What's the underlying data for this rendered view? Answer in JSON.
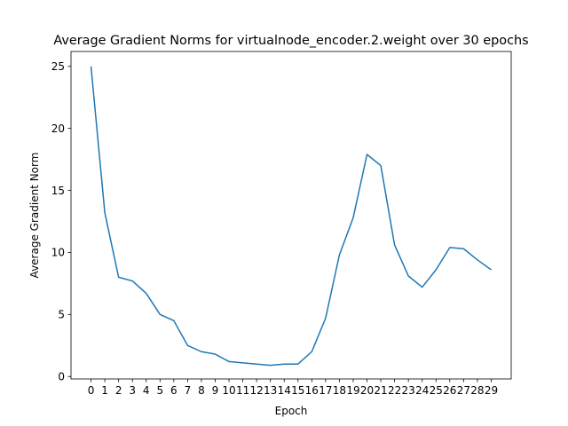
{
  "chart_data": {
    "type": "line",
    "title": "Average Gradient Norms for virtualnode_encoder.2.weight over 30 epochs",
    "xlabel": "Epoch",
    "ylabel": "Average Gradient Norm",
    "x": [
      0,
      1,
      2,
      3,
      4,
      5,
      6,
      7,
      8,
      9,
      10,
      11,
      12,
      13,
      14,
      15,
      16,
      17,
      18,
      19,
      20,
      21,
      22,
      23,
      24,
      25,
      26,
      27,
      28,
      29
    ],
    "x_tick_labels": [
      "0",
      "1",
      "2",
      "3",
      "4",
      "5",
      "6",
      "7",
      "8",
      "9",
      "10",
      "11",
      "12",
      "13",
      "14",
      "15",
      "16",
      "17",
      "18",
      "19",
      "20",
      "21",
      "22",
      "23",
      "24",
      "25",
      "26",
      "27",
      "28",
      "29"
    ],
    "series": [
      {
        "values": [
          25.0,
          13.2,
          8.0,
          7.7,
          6.7,
          5.0,
          4.5,
          2.5,
          2.0,
          1.8,
          1.2,
          1.1,
          1.0,
          0.9,
          1.0,
          1.0,
          2.0,
          4.7,
          9.8,
          12.8,
          17.9,
          17.0,
          10.6,
          8.1,
          7.2,
          8.6,
          10.4,
          10.3,
          9.4,
          8.6
        ],
        "color": "#1f77b4"
      }
    ],
    "xlim": [
      -1.45,
      30.45
    ],
    "ylim": [
      -0.2,
      26.2
    ],
    "y_ticks": [
      0,
      5,
      10,
      15,
      20,
      25
    ],
    "grid": false
  }
}
